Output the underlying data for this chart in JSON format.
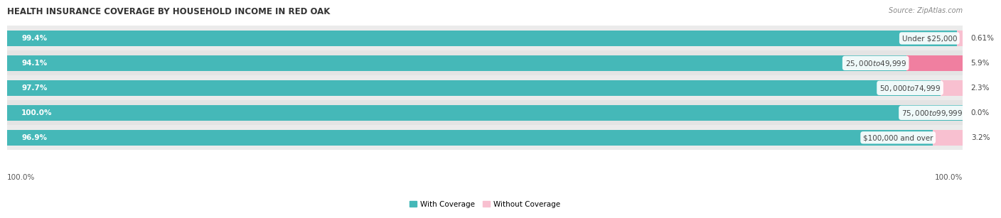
{
  "title": "HEALTH INSURANCE COVERAGE BY HOUSEHOLD INCOME IN RED OAK",
  "source": "Source: ZipAtlas.com",
  "categories": [
    "Under $25,000",
    "$25,000 to $49,999",
    "$50,000 to $74,999",
    "$75,000 to $99,999",
    "$100,000 and over"
  ],
  "with_coverage": [
    99.4,
    94.1,
    97.7,
    100.0,
    96.9
  ],
  "without_coverage": [
    0.61,
    5.9,
    2.3,
    0.0,
    3.2
  ],
  "with_coverage_labels": [
    "99.4%",
    "94.1%",
    "97.7%",
    "100.0%",
    "96.9%"
  ],
  "without_coverage_labels": [
    "0.61%",
    "5.9%",
    "2.3%",
    "0.0%",
    "3.2%"
  ],
  "color_with": "#45b8b8",
  "color_without": "#f07fa0",
  "color_without_light": "#f8c0d0",
  "title_fontsize": 8.5,
  "label_fontsize": 7.5,
  "source_fontsize": 7,
  "legend_fontsize": 7.5,
  "bottom_label": "100.0%",
  "bar_height": 0.62,
  "total_width": 100.0,
  "row_colors": [
    "#ebebeb",
    "#e0e0e0"
  ],
  "bar_bg": "#e0e0e0"
}
